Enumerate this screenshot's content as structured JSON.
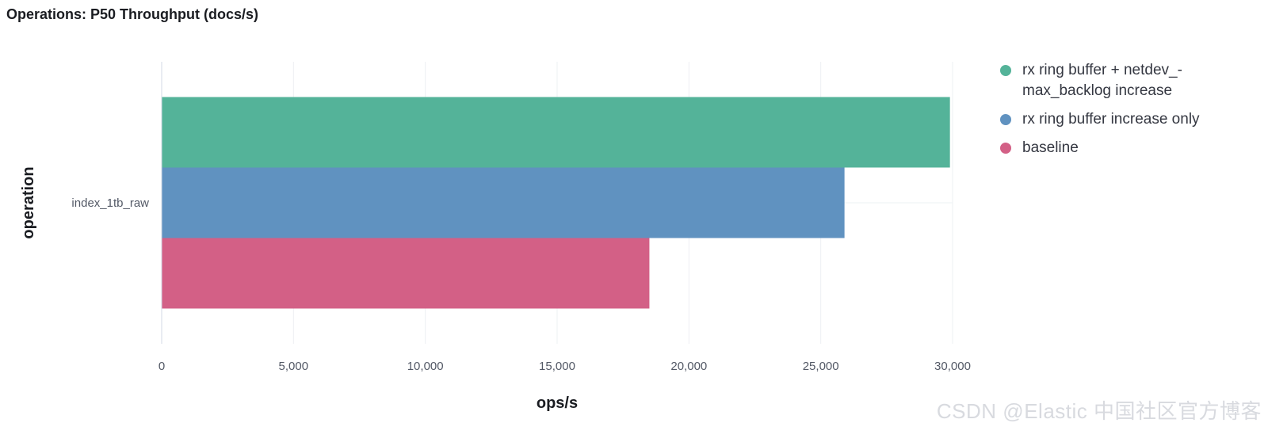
{
  "chart_data": {
    "type": "bar",
    "orientation": "horizontal",
    "title": "Operations: P50 Throughput (docs/s)",
    "xlabel": "ops/s",
    "ylabel": "operation",
    "categories": [
      "index_1tb_raw"
    ],
    "xlim": [
      0,
      30000
    ],
    "x_ticks": [
      0,
      5000,
      10000,
      15000,
      20000,
      25000,
      30000
    ],
    "x_tick_labels": [
      "0",
      "5,000",
      "10,000",
      "15,000",
      "20,000",
      "25,000",
      "30,000"
    ],
    "grid": true,
    "legend_position": "right",
    "series": [
      {
        "name": "rx ring buffer + netdev_max_backlog increase",
        "values": [
          29900
        ],
        "color": "#54b399"
      },
      {
        "name": "rx ring buffer increase only",
        "values": [
          25900
        ],
        "color": "#6092c0"
      },
      {
        "name": "baseline",
        "values": [
          18500
        ],
        "color": "#d36086"
      }
    ]
  },
  "legend": {
    "items": [
      {
        "label": "rx ring buffer + netdev_-max_backlog increase",
        "color": "#54b399"
      },
      {
        "label": "rx ring buffer increase only",
        "color": "#6092c0"
      },
      {
        "label": "baseline",
        "color": "#d36086"
      }
    ]
  },
  "watermark": "CSDN @Elastic 中国社区官方博客"
}
